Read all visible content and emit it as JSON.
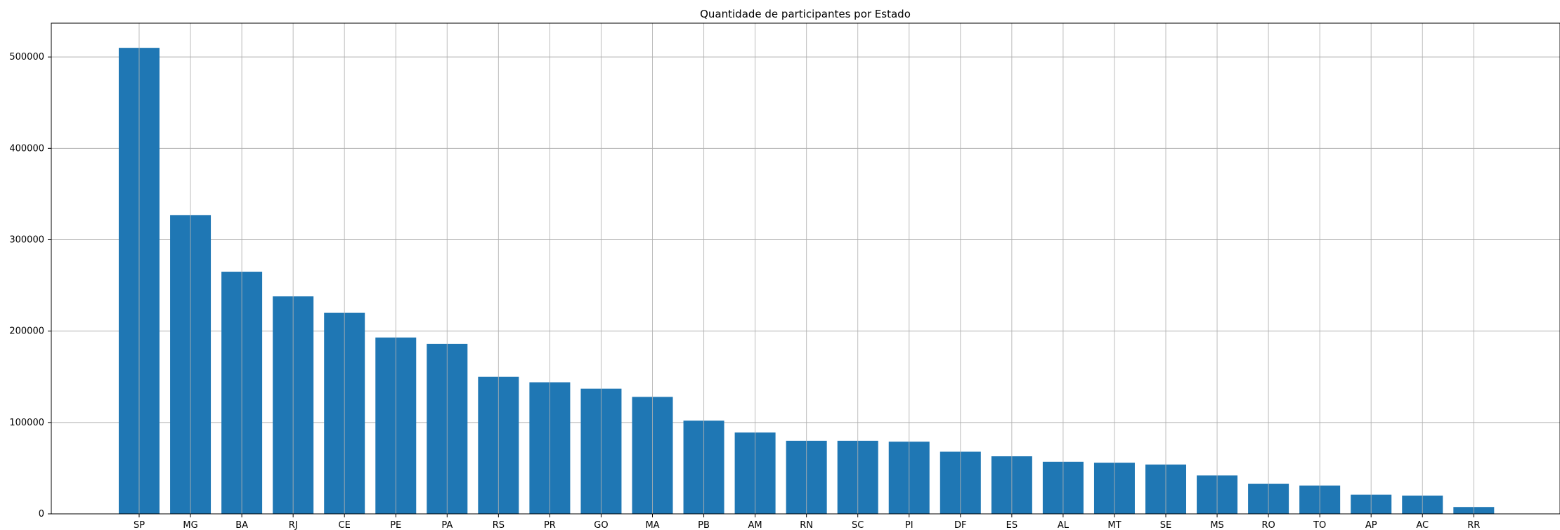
{
  "chart_data": {
    "type": "bar",
    "title": "Quantidade de participantes por Estado",
    "xlabel": "",
    "ylabel": "",
    "categories": [
      "SP",
      "MG",
      "BA",
      "RJ",
      "CE",
      "PE",
      "PA",
      "RS",
      "PR",
      "GO",
      "MA",
      "PB",
      "AM",
      "RN",
      "SC",
      "PI",
      "DF",
      "ES",
      "AL",
      "MT",
      "SE",
      "MS",
      "RO",
      "TO",
      "AP",
      "AC",
      "RR"
    ],
    "values": [
      510000,
      327000,
      265000,
      238000,
      220000,
      193000,
      186000,
      150000,
      144000,
      137000,
      128000,
      102000,
      89000,
      80000,
      80000,
      79000,
      68000,
      63000,
      57000,
      56000,
      54000,
      42000,
      33000,
      31000,
      21000,
      20000,
      7500
    ],
    "yticks": [
      0,
      100000,
      200000,
      300000,
      400000,
      500000
    ],
    "ylim": [
      0,
      537000
    ],
    "grid": true,
    "bar_color": "#1f77b4"
  }
}
